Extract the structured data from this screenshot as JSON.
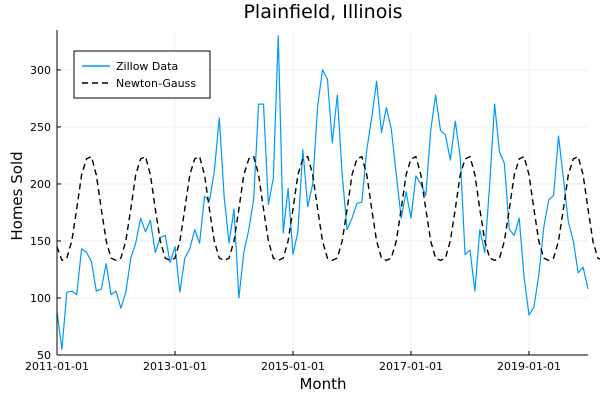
{
  "chart_data": {
    "type": "line",
    "title": "Plainfield, Illinois",
    "xlabel": "Month",
    "ylabel": "Homes Sold",
    "xlim": [
      "2011-01-01",
      "2020-01-01"
    ],
    "ylim": [
      50,
      335
    ],
    "xticks": [
      "2011-01-01",
      "2013-01-01",
      "2015-01-01",
      "2017-01-01",
      "2019-01-01"
    ],
    "yticks": [
      50,
      100,
      150,
      200,
      250,
      300
    ],
    "grid": true,
    "legend_position": "top-left",
    "start_month": "2011-01",
    "series": [
      {
        "name": "Zillow Data",
        "color": "#009af9",
        "style": "solid",
        "values": [
          88,
          55,
          105,
          106,
          103,
          143,
          140,
          132,
          106,
          108,
          130,
          103,
          106,
          91,
          105,
          135,
          148,
          170,
          158,
          168,
          140,
          153,
          155,
          131,
          145,
          105,
          135,
          143,
          160,
          148,
          189,
          185,
          211,
          258,
          188,
          148,
          178,
          100,
          140,
          160,
          187,
          270,
          270,
          182,
          205,
          330,
          157,
          196,
          138,
          158,
          230,
          180,
          200,
          268,
          300,
          292,
          236,
          278,
          208,
          160,
          170,
          183,
          184,
          230,
          258,
          290,
          245,
          267,
          248,
          208,
          170,
          193,
          170,
          207,
          200,
          190,
          247,
          278,
          247,
          243,
          221,
          255,
          224,
          138,
          142,
          106,
          160,
          140,
          200,
          270,
          228,
          218,
          160,
          155,
          170,
          118,
          85,
          92,
          120,
          162,
          186,
          190,
          242,
          205,
          167,
          150,
          122,
          127,
          108
        ]
      },
      {
        "name": "Newton-Gauss",
        "color": "#000000",
        "style": "dashed",
        "values": [
          145,
          133,
          135,
          150,
          178,
          208,
          222,
          224,
          208,
          178,
          150,
          135,
          133,
          135,
          150,
          178,
          208,
          222,
          224,
          208,
          178,
          150,
          135,
          133,
          135,
          150,
          178,
          208,
          222,
          224,
          208,
          178,
          150,
          135,
          133,
          135,
          150,
          178,
          208,
          222,
          224,
          208,
          178,
          150,
          135,
          133,
          135,
          150,
          178,
          208,
          222,
          224,
          208,
          178,
          150,
          135,
          133,
          135,
          150,
          178,
          208,
          222,
          224,
          208,
          178,
          150,
          135,
          133,
          135,
          150,
          178,
          208,
          222,
          224,
          208,
          178,
          150,
          135,
          133,
          135,
          150,
          178,
          208,
          222,
          224,
          208,
          178,
          150,
          135,
          133,
          135,
          150,
          178,
          208,
          222,
          224,
          208,
          178,
          150,
          135,
          133,
          135,
          150,
          178,
          208,
          222,
          224,
          208,
          178,
          150,
          135,
          133
        ]
      }
    ]
  }
}
